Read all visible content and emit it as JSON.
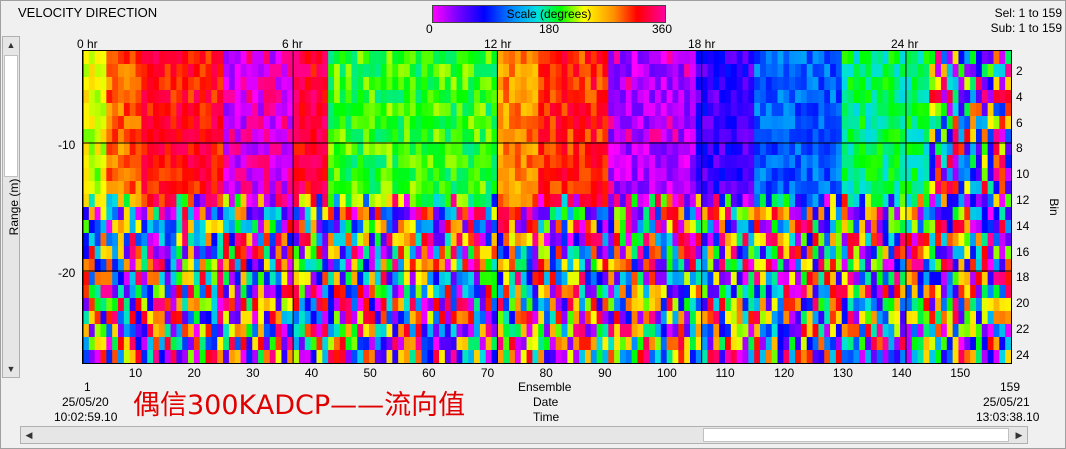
{
  "window": {
    "title": "VELOCITY DIRECTION",
    "sel": "Sel: 1 to 159",
    "sub": "Sub: 1 to 159"
  },
  "scale": {
    "label": "Scale (degrees)",
    "ticks": [
      "0",
      "180",
      "360"
    ]
  },
  "axes": {
    "ylabel": "Range (m)",
    "binlabel": "Bin",
    "yticks": [
      "-10",
      "-20"
    ],
    "top_ticks": [
      "0 hr",
      "6 hr",
      "12 hr",
      "18 hr",
      "24 hr"
    ],
    "bottom_ticks": [
      "10",
      "20",
      "30",
      "40",
      "50",
      "60",
      "70",
      "80",
      "90",
      "100",
      "110",
      "120",
      "130",
      "140",
      "150"
    ],
    "bin_ticks": [
      "2",
      "4",
      "6",
      "8",
      "10",
      "12",
      "14",
      "16",
      "18",
      "20",
      "22",
      "24"
    ],
    "ensemble_label": "Ensemble",
    "date_label": "Date",
    "time_label": "Time"
  },
  "start": {
    "ensemble": "1",
    "date": "25/05/20",
    "time": "10:02:59.10"
  },
  "end": {
    "ensemble": "159",
    "date": "25/05/21",
    "time": "13:03:38.10"
  },
  "overlay_text": "偶信300KADCP——流向值",
  "chart_data": {
    "type": "heatmap",
    "title": "VELOCITY DIRECTION",
    "xlabel": "Ensemble",
    "ylabel": "Range (m)",
    "x_range": [
      1,
      159
    ],
    "bins": [
      1,
      24
    ],
    "value_range": [
      0,
      360
    ],
    "color_scale": "Scale (degrees)",
    "bin_direction_profile": [
      {
        "ensembles": [
          1,
          4
        ],
        "upper_bins_1_12_deg": 230
      },
      {
        "ensembles": [
          5,
          10
        ],
        "upper_bins_1_12_deg": 290
      },
      {
        "ensembles": [
          11,
          24
        ],
        "upper_bins_1_12_deg": 320
      },
      {
        "ensembles": [
          25,
          36
        ],
        "upper_bins_1_12_deg": 10
      },
      {
        "ensembles": [
          37,
          42
        ],
        "upper_bins_1_12_deg": 330
      },
      {
        "ensembles": [
          43,
          71
        ],
        "upper_bins_1_12_deg": 200
      },
      {
        "ensembles": [
          72,
          78
        ],
        "upper_bins_1_12_deg": 280
      },
      {
        "ensembles": [
          79,
          90
        ],
        "upper_bins_1_12_deg": 310
      },
      {
        "ensembles": [
          91,
          105
        ],
        "upper_bins_1_12_deg": 20
      },
      {
        "ensembles": [
          106,
          115
        ],
        "upper_bins_1_12_deg": 60
      },
      {
        "ensembles": [
          116,
          130
        ],
        "upper_bins_1_12_deg": 110
      },
      {
        "ensembles": [
          131,
          145
        ],
        "upper_bins_1_12_deg": 180
      },
      {
        "ensembles": [
          146,
          159
        ],
        "upper_bins_1_12_deg": "mixed"
      }
    ],
    "lower_bins_13_24": "noisy / mixed directions"
  }
}
